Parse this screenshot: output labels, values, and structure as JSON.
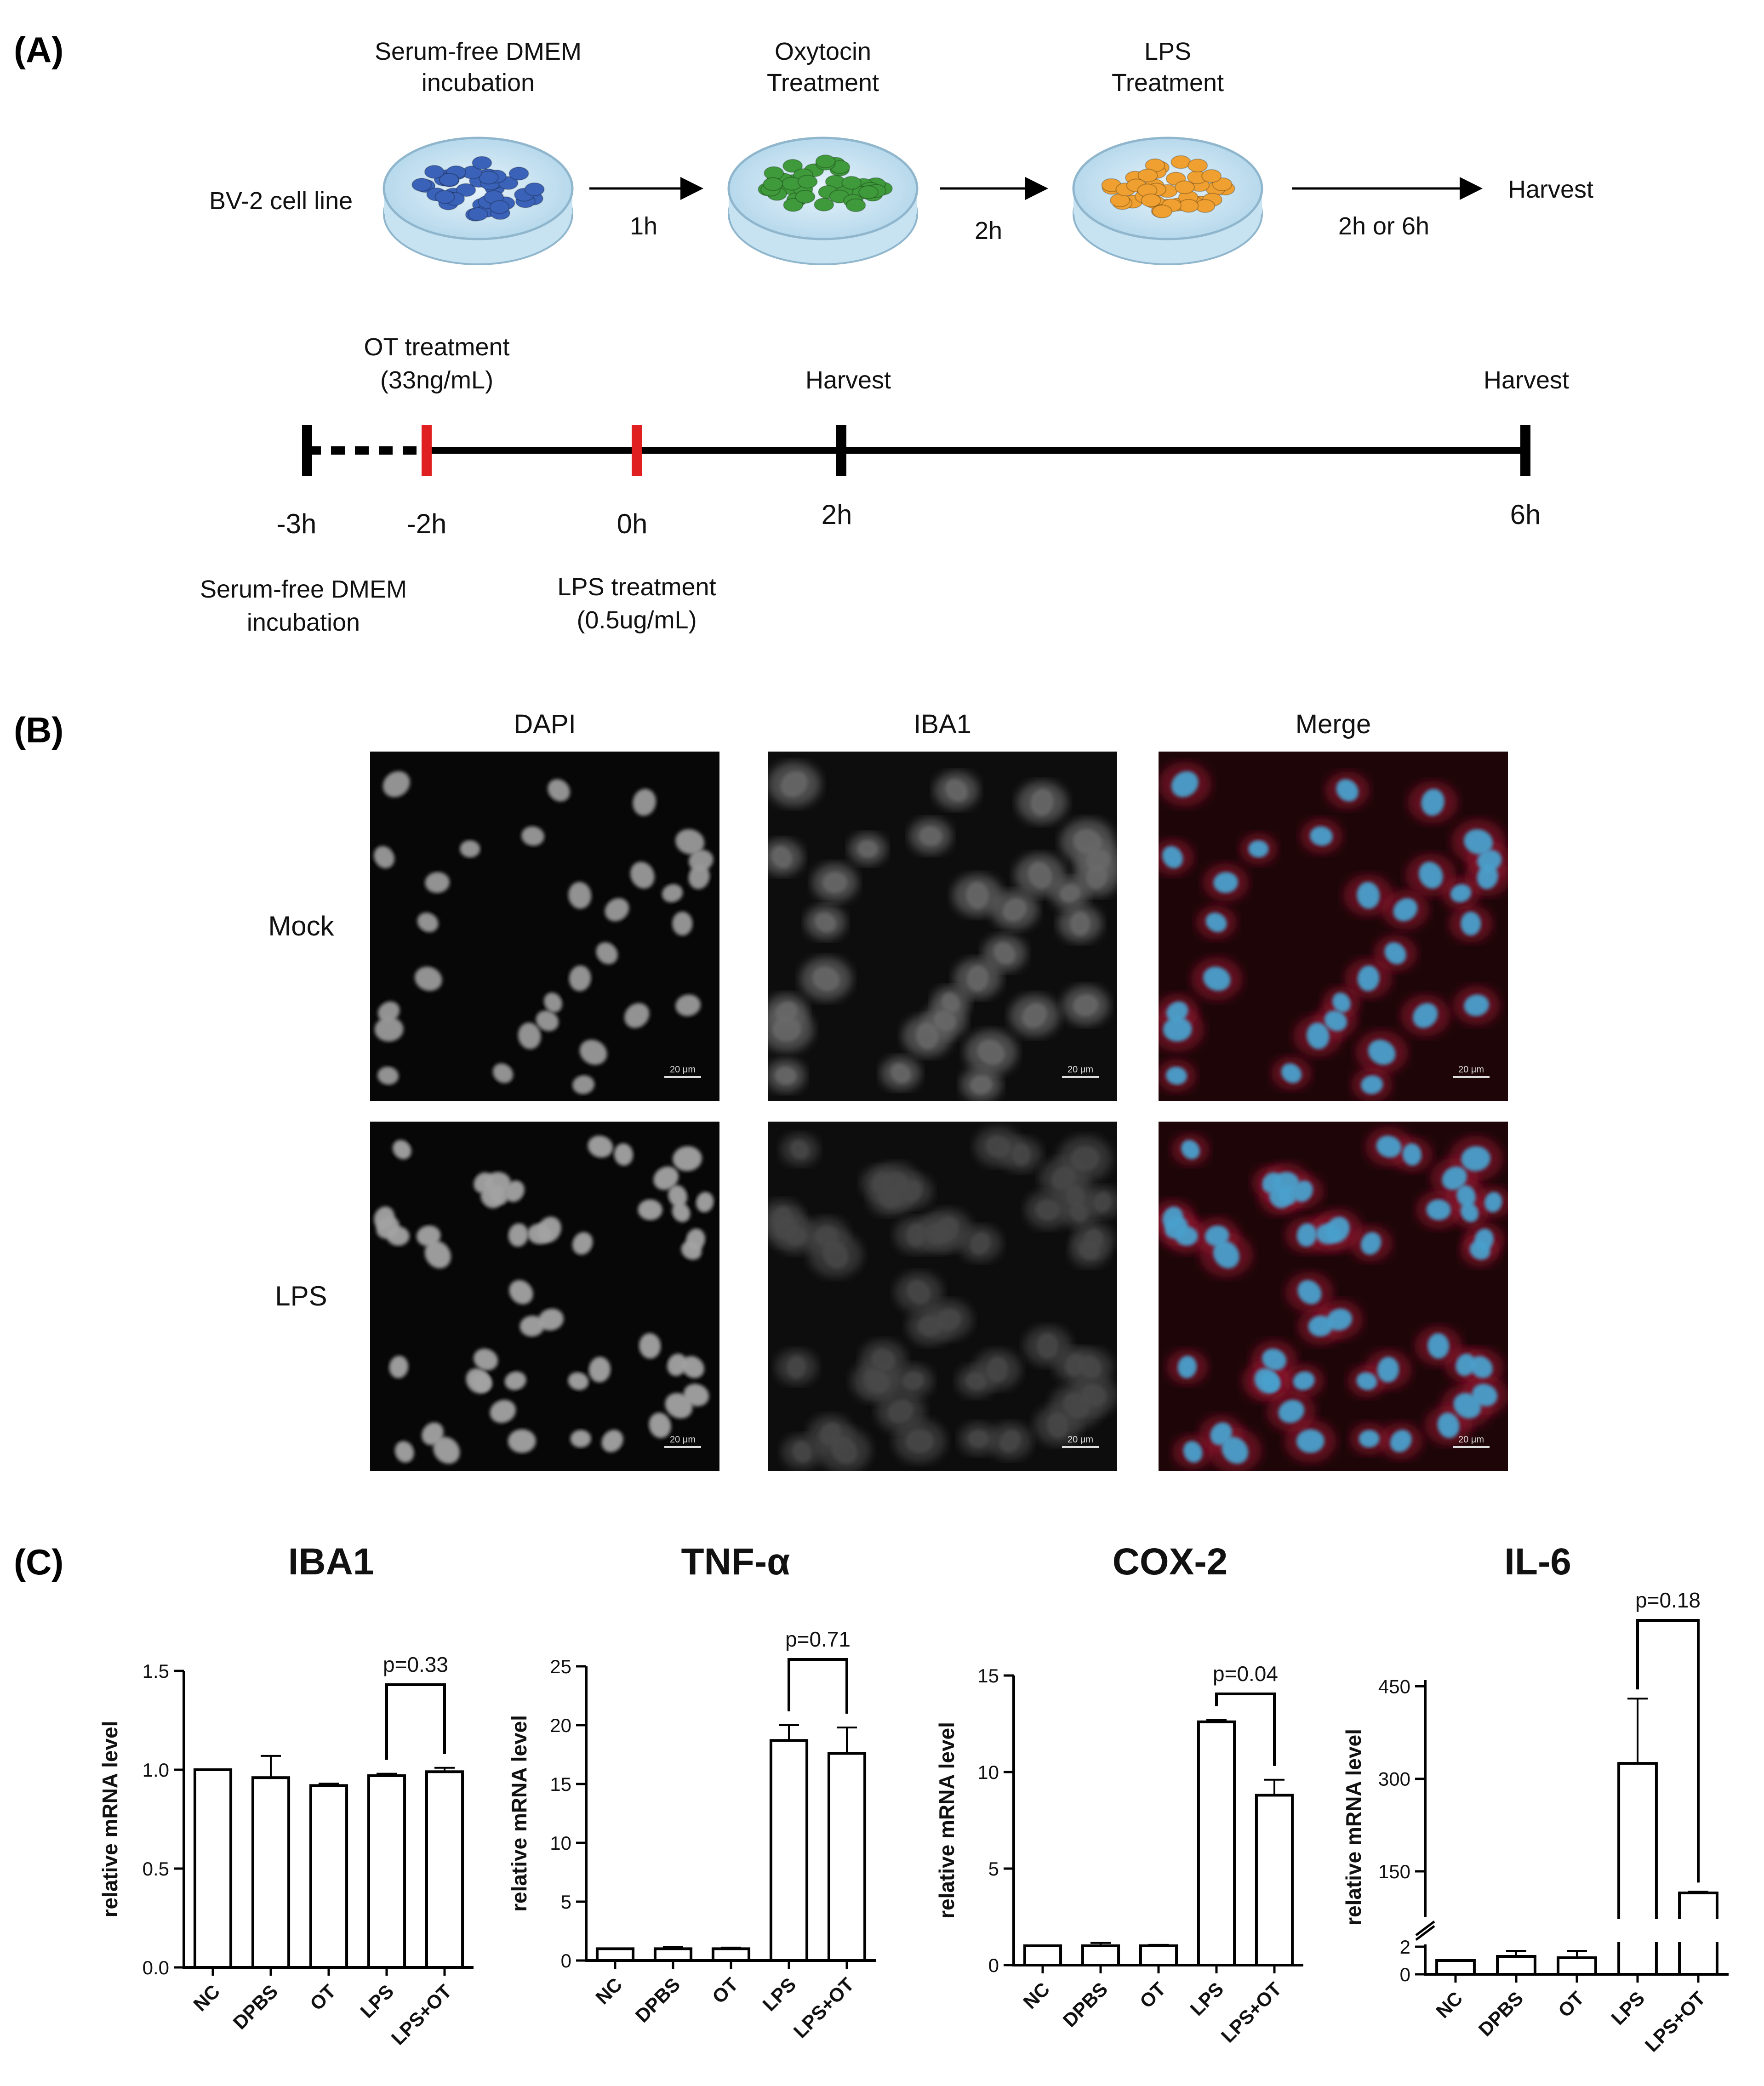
{
  "panels": {
    "A": {
      "label": "(A)",
      "workflow": {
        "cell_line": "BV-2 cell line",
        "steps": [
          {
            "title_lines": [
              "Serum-free DMEM",
              "incubation"
            ],
            "color": "#3a62b8"
          },
          {
            "title_lines": [
              "Oxytocin",
              "Treatment"
            ],
            "color": "#3e9a3a"
          },
          {
            "title_lines": [
              "LPS",
              "Treatment"
            ],
            "color": "#f0a030"
          }
        ],
        "intervals": [
          "1h",
          "2h",
          "2h or 6h"
        ],
        "end_label": "Harvest"
      },
      "timeline": {
        "ticks": [
          {
            "label": "-3h",
            "color": "#000000"
          },
          {
            "label": "-2h",
            "color": "#e02020"
          },
          {
            "label": "0h",
            "color": "#e02020"
          },
          {
            "label": "2h",
            "color": "#000000"
          },
          {
            "label": "6h",
            "color": "#000000"
          }
        ],
        "above": [
          {
            "lines": [
              "OT treatment",
              "(33ng/mL)"
            ]
          },
          {
            "lines": [
              "Harvest"
            ]
          },
          {
            "lines": [
              "Harvest"
            ]
          }
        ],
        "below": [
          {
            "lines": [
              "Serum-free DMEM",
              "incubation"
            ]
          },
          {
            "lines": [
              "LPS treatment",
              "(0.5ug/mL)"
            ]
          }
        ]
      }
    },
    "B": {
      "label": "(B)",
      "columns": [
        "DAPI",
        "IBA1",
        "Merge"
      ],
      "rows": [
        "Mock",
        "LPS"
      ],
      "scale_bar": "20 μm"
    },
    "C": {
      "label": "(C)",
      "y_label": "relative mRNA level"
    }
  },
  "chart_data": [
    {
      "type": "bar",
      "title": "IBA1",
      "ylabel": "relative mRNA level",
      "categories": [
        "NC",
        "DPBS",
        "OT",
        "LPS",
        "LPS+OT"
      ],
      "values": [
        1.0,
        0.96,
        0.92,
        0.97,
        0.99
      ],
      "errors": [
        0.0,
        0.11,
        0.01,
        0.01,
        0.02
      ],
      "ylim": [
        0,
        1.5
      ],
      "yticks": [
        0.0,
        0.5,
        1.0,
        1.5
      ],
      "tick_format": "1dec",
      "significance": {
        "from": "LPS",
        "to": "LPS+OT",
        "label": "p=0.33"
      }
    },
    {
      "type": "bar",
      "title": "TNF-α",
      "ylabel": "relative mRNA level",
      "categories": [
        "NC",
        "DPBS",
        "OT",
        "LPS",
        "LPS+OT"
      ],
      "values": [
        1.0,
        1.0,
        1.0,
        18.7,
        17.6
      ],
      "errors": [
        0.0,
        0.15,
        0.1,
        1.3,
        2.2
      ],
      "ylim": [
        0,
        25
      ],
      "yticks": [
        0,
        5,
        10,
        15,
        20,
        25
      ],
      "tick_format": "int",
      "significance": {
        "from": "LPS",
        "to": "LPS+OT",
        "label": "p=0.71"
      }
    },
    {
      "type": "bar",
      "title": "COX-2",
      "ylabel": "relative mRNA level",
      "categories": [
        "NC",
        "DPBS",
        "OT",
        "LPS",
        "LPS+OT"
      ],
      "values": [
        1.0,
        1.0,
        1.0,
        12.6,
        8.8
      ],
      "errors": [
        0.0,
        0.15,
        0.05,
        0.1,
        0.8
      ],
      "ylim": [
        0,
        15
      ],
      "yticks": [
        0,
        5,
        10,
        15
      ],
      "tick_format": "int",
      "significance": {
        "from": "LPS",
        "to": "LPS+OT",
        "label": "p=0.04"
      }
    },
    {
      "type": "bar",
      "title": "IL-6",
      "ylabel": "relative mRNA level",
      "categories": [
        "NC",
        "DPBS",
        "OT",
        "LPS",
        "LPS+OT"
      ],
      "values": [
        1.0,
        1.3,
        1.2,
        325,
        115
      ],
      "errors": [
        0.0,
        0.4,
        0.5,
        105,
        2
      ],
      "broken_axis": {
        "low_range": [
          0,
          2
        ],
        "high_range": [
          80,
          460
        ],
        "low_ticks": [
          0,
          2
        ],
        "high_ticks": [
          150,
          300,
          450
        ]
      },
      "significance": {
        "from": "LPS",
        "to": "LPS+OT",
        "label": "p=0.18"
      }
    }
  ]
}
